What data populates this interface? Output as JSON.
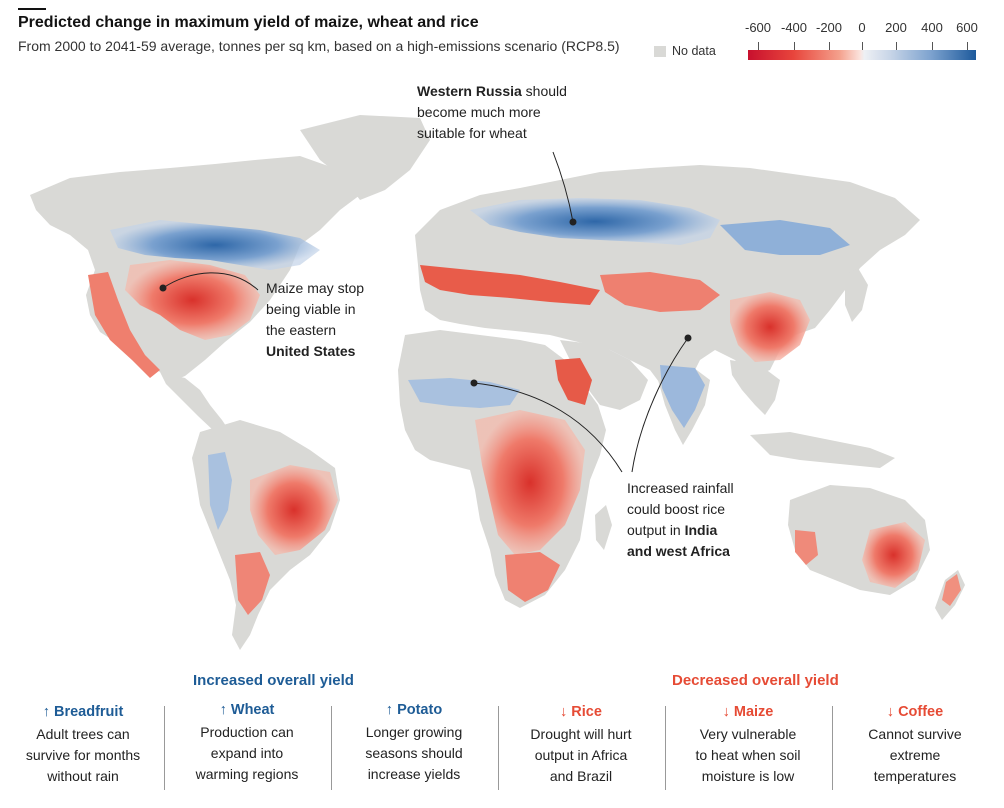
{
  "header": {
    "title": "Predicted change in maximum yield of maize, wheat and rice",
    "subtitle": "From 2000 to 2041-59 average, tonnes per sq km, based on a high-emissions scenario (RCP8.5)",
    "no_data_label": "No data"
  },
  "legend": {
    "ticks": [
      "-600",
      "-400",
      "-200",
      "0",
      "200",
      "400",
      "600"
    ],
    "colors": {
      "strong_decrease": "#c8102e",
      "decrease": "#e8453c",
      "neutral": "#eef0f4",
      "increase": "#7ea3cf",
      "strong_increase": "#1d5a9c",
      "no_data": "#d9d9d6"
    }
  },
  "annotations": {
    "russia": {
      "bold": "Western Russia",
      "rest_1": " should",
      "line2": "become much more",
      "line3": "suitable for wheat"
    },
    "us": {
      "line1": "Maize may stop",
      "line2": "being viable in",
      "line3": "the eastern",
      "bold": "United States"
    },
    "india": {
      "line1": "Increased rainfall",
      "line2": "could boost rice",
      "line3": "output in ",
      "bold1": "India",
      "bold2": "and west Africa"
    }
  },
  "groups": {
    "increased_label": "Increased overall yield",
    "decreased_label": "Decreased overall yield",
    "increased_color": "#1e5c96",
    "decreased_color": "#e64b35"
  },
  "crops": [
    {
      "name": "↑ Breadfruit",
      "direction": "up",
      "lines": [
        "Adult trees can",
        "survive for months",
        "without rain"
      ]
    },
    {
      "name": "↑ Wheat",
      "direction": "up",
      "lines": [
        "Production can",
        "expand into",
        "warming regions"
      ]
    },
    {
      "name": "↑ Potato",
      "direction": "up",
      "lines": [
        "Longer growing",
        "seasons should",
        "increase yields"
      ]
    },
    {
      "name": "↓ Rice",
      "direction": "down",
      "lines": [
        "Drought will hurt",
        "output in Africa",
        "and Brazil"
      ]
    },
    {
      "name": "↓ Maize",
      "direction": "down",
      "lines": [
        "Very vulnerable",
        "to heat when soil",
        "moisture is low"
      ]
    },
    {
      "name": "↓ Coffee",
      "direction": "down",
      "lines": [
        "Cannot survive",
        "extreme",
        "temperatures"
      ]
    }
  ]
}
